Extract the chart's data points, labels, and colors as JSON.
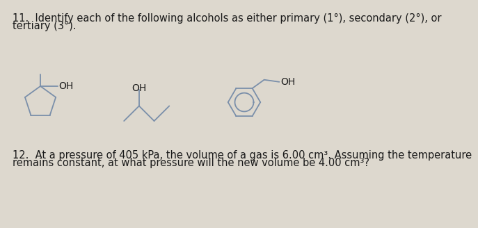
{
  "bg_color": "#ddd8ce",
  "text_color": "#1a1a1a",
  "line_color": "#7a8faa",
  "question11_line1": "11.  Identify each of the following alcohols as either primary (1°), secondary (2°), or",
  "question11_line2": "tertiary (3°).",
  "question12_line1": "12.  At a pressure of 405 kPa, the volume of a gas is 6.00 cm³. Assuming the temperature",
  "question12_line2": "remains constant, at what pressure will the new volume be 4.00 cm³?",
  "oh_label": "OH",
  "font_size_text": 10.5,
  "font_size_oh": 10
}
